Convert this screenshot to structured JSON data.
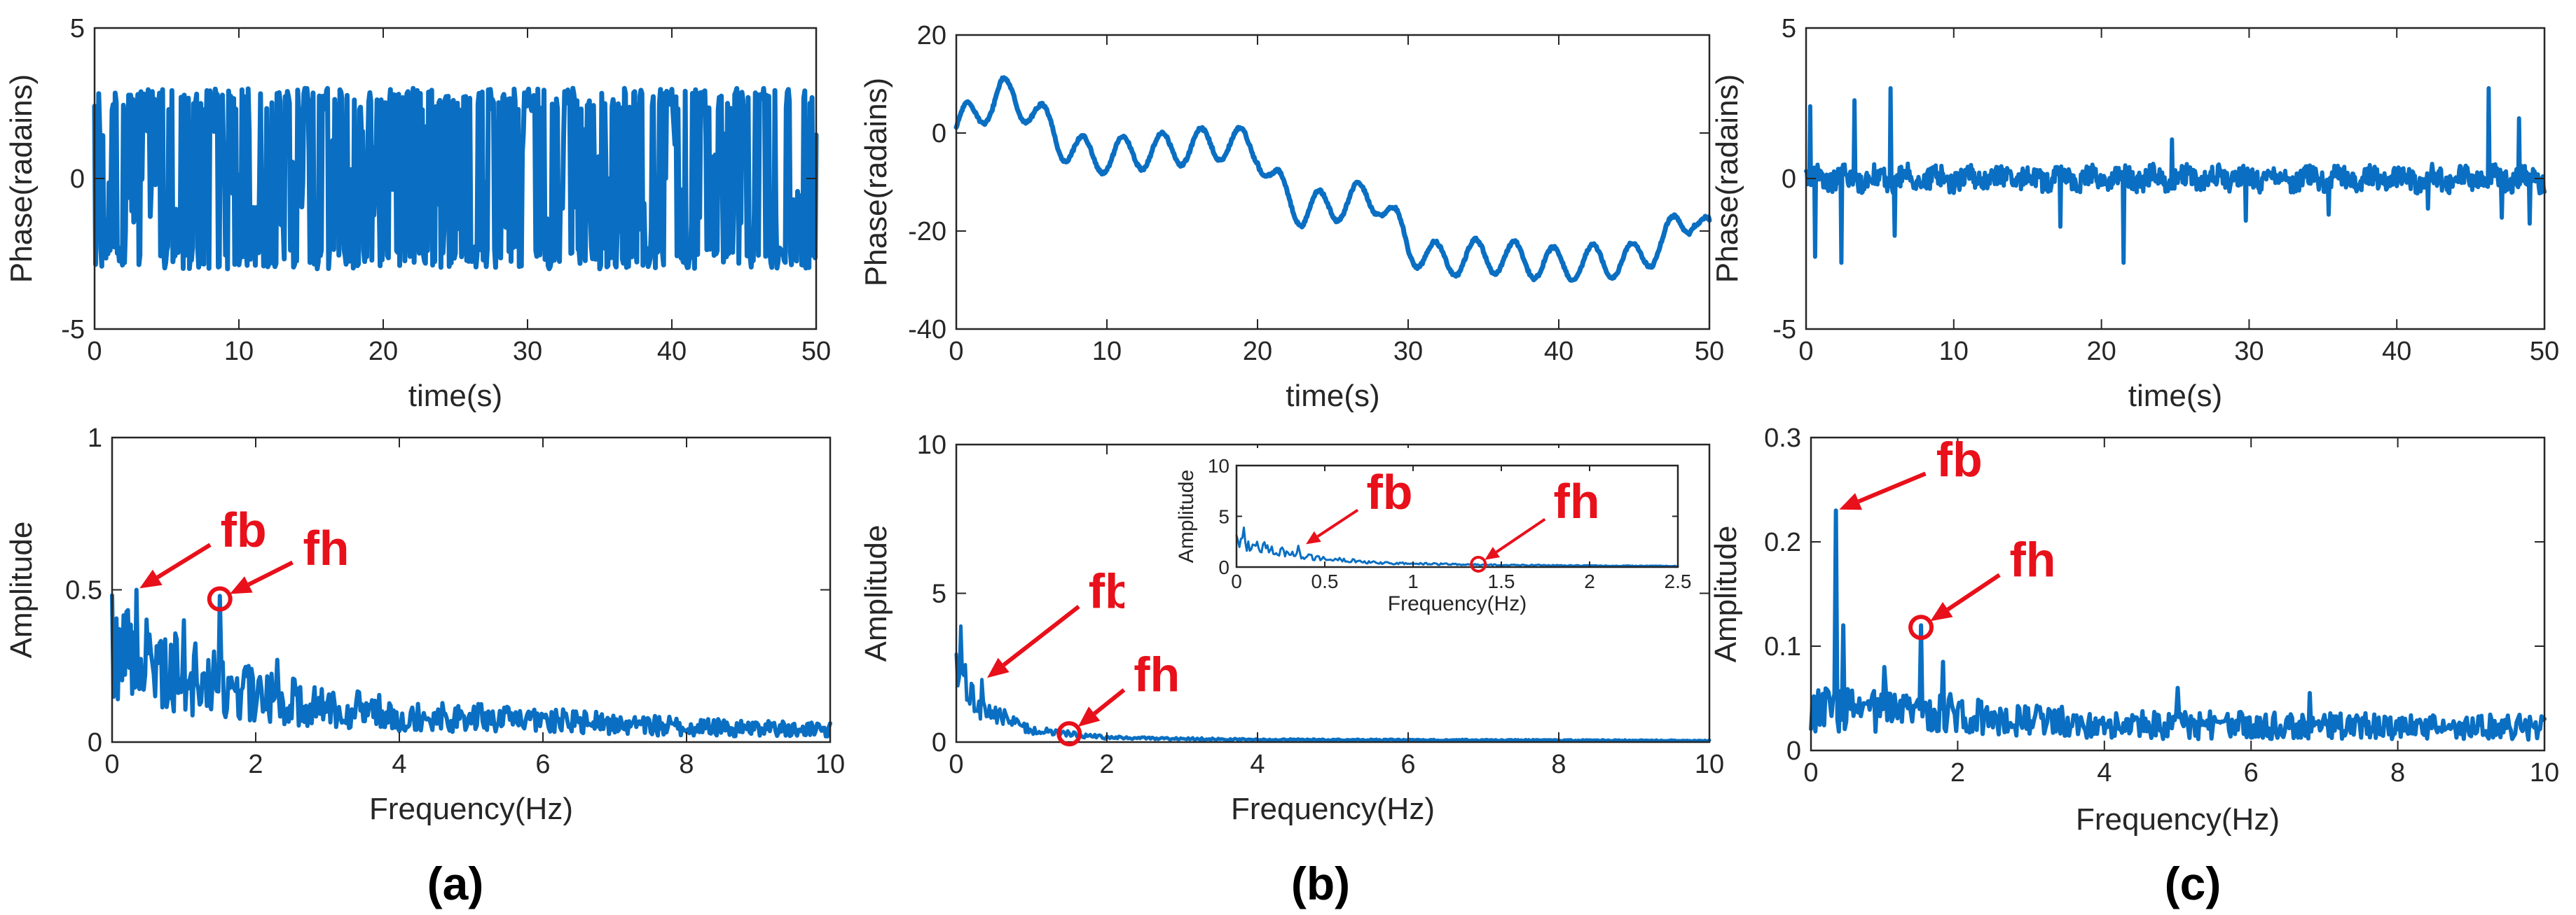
{
  "panel_labels": [
    "(a)",
    "(b)",
    "(c)"
  ],
  "chart_data": [
    {
      "id": "a-top",
      "type": "line",
      "xlabel": "time(s)",
      "ylabel": "Phase(radains)",
      "xlim": [
        0,
        50
      ],
      "ylim": [
        -5,
        5
      ],
      "xticks": [
        0,
        10,
        20,
        30,
        40,
        50
      ],
      "yticks": [
        -5,
        0,
        5
      ],
      "series": [
        {
          "color": "#0a6fc2",
          "pattern": "wrapped",
          "amplitude": 3.0,
          "points": 700,
          "values_summary": "wrapped phase oscillating between about -3 and 3 across 0-50 s"
        }
      ]
    },
    {
      "id": "b-top",
      "type": "line",
      "xlabel": "time(s)",
      "ylabel": "Phase(radains)",
      "xlim": [
        0,
        50
      ],
      "ylim": [
        -40,
        20
      ],
      "xticks": [
        0,
        10,
        20,
        30,
        40,
        50
      ],
      "yticks": [
        -40,
        -20,
        0,
        20
      ],
      "series": [
        {
          "color": "#0a6fc2",
          "pattern": "unwrapped",
          "x": [
            0,
            3,
            5,
            7,
            9,
            12,
            15,
            18,
            20,
            21,
            23,
            26,
            28,
            30,
            32,
            35,
            38,
            40,
            43,
            45,
            47,
            49,
            50
          ],
          "y": [
            1,
            8,
            5,
            -2,
            -5,
            -4,
            -3,
            -2,
            -3,
            -10,
            -16,
            -14,
            -13,
            -23,
            -26,
            -25,
            -26,
            -27,
            -26,
            -26,
            -22,
            -16,
            -21
          ],
          "oscillation": 3.5
        }
      ]
    },
    {
      "id": "c-top",
      "type": "line",
      "xlabel": "time(s)",
      "ylabel": "Phase(radains)",
      "xlim": [
        0,
        50
      ],
      "ylim": [
        -5,
        5
      ],
      "xticks": [
        0,
        10,
        20,
        30,
        40,
        50
      ],
      "yticks": [
        -5,
        0,
        5
      ],
      "series": [
        {
          "color": "#0a6fc2",
          "pattern": "noise",
          "base": 0,
          "noise": 0.35,
          "spikes": [
            [
              0.3,
              2.4
            ],
            [
              0.6,
              -2.6
            ],
            [
              2.4,
              -2.8
            ],
            [
              3.3,
              2.6
            ],
            [
              5.7,
              3.0
            ],
            [
              6.0,
              -1.9
            ],
            [
              17.2,
              -1.6
            ],
            [
              21.5,
              -2.8
            ],
            [
              24.8,
              1.3
            ],
            [
              29.8,
              -1.4
            ],
            [
              35.4,
              -1.2
            ],
            [
              42.1,
              -1.0
            ],
            [
              46.2,
              3.0
            ],
            [
              47.1,
              -1.3
            ],
            [
              48.3,
              2.0
            ],
            [
              49.0,
              -1.5
            ]
          ]
        }
      ]
    },
    {
      "id": "a-bottom",
      "type": "line",
      "xlabel": "Frequency(Hz)",
      "ylabel": "Amplitude",
      "xlim": [
        0,
        10
      ],
      "ylim": [
        0,
        1
      ],
      "xticks": [
        0,
        2,
        4,
        6,
        8,
        10
      ],
      "yticks": [
        0,
        0.5,
        1
      ],
      "series": [
        {
          "color": "#0a6fc2",
          "pattern": "spectrum",
          "points": 500,
          "envelope": [
            [
              0,
              0.32
            ],
            [
              1,
              0.22
            ],
            [
              2,
              0.15
            ],
            [
              4,
              0.09
            ],
            [
              6,
              0.07
            ],
            [
              8,
              0.05
            ],
            [
              10,
              0.04
            ]
          ],
          "noise": 0.6,
          "peaks": [
            [
              0.35,
              0.5
            ],
            [
              1.0,
              0.4
            ],
            [
              1.5,
              0.48
            ],
            [
              2.3,
              0.27
            ]
          ]
        }
      ],
      "annotations": [
        {
          "text": "fb",
          "target": [
            0.35,
            0.5
          ],
          "text_at": [
            1.45,
            0.66
          ]
        },
        {
          "text": "fh",
          "target": [
            1.5,
            0.47
          ],
          "text_at": [
            2.6,
            0.6
          ],
          "circle": true
        }
      ]
    },
    {
      "id": "b-bottom",
      "type": "line",
      "xlabel": "Frequency(Hz)",
      "ylabel": "Amplitude",
      "xlim": [
        0,
        10
      ],
      "ylim": [
        0,
        10
      ],
      "xticks": [
        0,
        2,
        4,
        6,
        8,
        10
      ],
      "yticks": [
        0,
        5,
        10
      ],
      "series": [
        {
          "color": "#0a6fc2",
          "pattern": "spectrum",
          "points": 500,
          "envelope": [
            [
              0,
              2.2
            ],
            [
              0.3,
              1.2
            ],
            [
              1,
              0.4
            ],
            [
              2,
              0.15
            ],
            [
              4,
              0.08
            ],
            [
              10,
              0.05
            ]
          ],
          "noise": 0.35,
          "peaks": [
            [
              0.05,
              3.9
            ],
            [
              0.12,
              2.6
            ],
            [
              0.35,
              2.1
            ],
            [
              1.5,
              0.3
            ]
          ]
        }
      ],
      "annotations": [
        {
          "text": "fb",
          "target": [
            0.38,
            2.1
          ],
          "text_at": [
            1.7,
            4.7
          ]
        },
        {
          "text": "fh",
          "target": [
            1.5,
            0.28
          ],
          "text_at": [
            2.3,
            1.9
          ],
          "circle": true
        }
      ],
      "inset": {
        "xlabel": "Frequency(Hz)",
        "ylabel": "Amplitude",
        "xlim": [
          0,
          2.5
        ],
        "ylim": [
          0,
          10
        ],
        "xticks": [
          0,
          0.5,
          1,
          1.5,
          2,
          2.5
        ],
        "yticks": [
          0,
          5,
          10
        ],
        "series": [
          {
            "color": "#0a6fc2",
            "pattern": "spectrum",
            "points": 300,
            "envelope": [
              [
                0,
                2.5
              ],
              [
                0.4,
                1.0
              ],
              [
                0.8,
                0.4
              ],
              [
                1.5,
                0.2
              ],
              [
                2.5,
                0.1
              ]
            ],
            "noise": 0.3,
            "peaks": [
              [
                0.04,
                3.9
              ],
              [
                0.12,
                2.5
              ],
              [
                0.35,
                2.1
              ]
            ]
          }
        ],
        "annotations": [
          {
            "text": "fb",
            "target": [
              0.38,
              2.1
            ],
            "text_at": [
              0.72,
              6.0
            ]
          },
          {
            "text": "fh",
            "target": [
              1.37,
              0.28
            ],
            "text_at": [
              1.78,
              5.1
            ],
            "circle": true
          }
        ]
      }
    },
    {
      "id": "c-bottom",
      "type": "line",
      "xlabel": "Frequency(Hz)",
      "ylabel": "Amplitude",
      "xlim": [
        0,
        10
      ],
      "ylim": [
        0,
        0.3
      ],
      "xticks": [
        0,
        2,
        4,
        6,
        8,
        10
      ],
      "yticks": [
        0,
        0.1,
        0.2,
        0.3
      ],
      "series": [
        {
          "color": "#0a6fc2",
          "pattern": "spectrum",
          "points": 500,
          "envelope": [
            [
              0,
              0.04
            ],
            [
              2,
              0.035
            ],
            [
              4,
              0.025
            ],
            [
              10,
              0.022
            ]
          ],
          "noise": 0.55,
          "peaks": [
            [
              0.35,
              0.23
            ],
            [
              0.45,
              0.12
            ],
            [
              1.0,
              0.08
            ],
            [
              1.5,
              0.12
            ],
            [
              1.8,
              0.085
            ],
            [
              5.0,
              0.06
            ],
            [
              6.8,
              0.055
            ]
          ]
        }
      ],
      "annotations": [
        {
          "text": "fb",
          "target": [
            0.35,
            0.23
          ],
          "text_at": [
            1.65,
            0.268
          ]
        },
        {
          "text": "fh",
          "target": [
            1.5,
            0.118
          ],
          "text_at": [
            2.65,
            0.172
          ],
          "circle": true
        }
      ]
    }
  ]
}
